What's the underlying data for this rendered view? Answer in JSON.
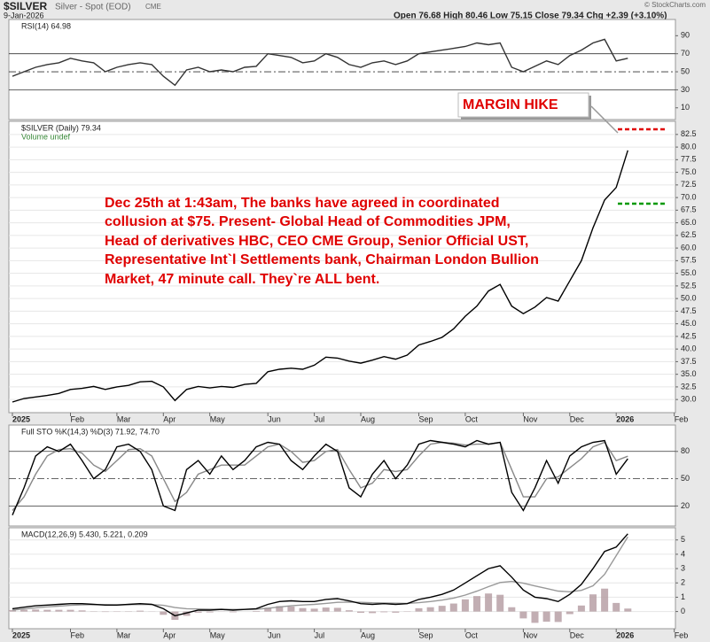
{
  "header": {
    "symbol": "$SILVER",
    "name": "Silver - Spot (EOD)",
    "exchange": "CME",
    "date": "9-Jan-2026",
    "quote": "Open 76.68 High 80.46 Low 75.15 Close 79.34 Chg +2.39 (+3.10%)",
    "credit": "© StockCharts.com"
  },
  "annotation": {
    "label": "MARGIN HIKE",
    "lines": [
      "Dec 25th at 1:43am, The banks have agreed in coordinated",
      "collusion at $75. Present- Global Head of Commodities JPM,",
      "Head of derivatives HBC, CEO CME Group, Senior Official UST,",
      "Representative Int`l Settlements bank, Chairman London Bullion",
      "Market, 47 minute call. They`re ALL bent."
    ]
  },
  "chart_data": [
    {
      "type": "line",
      "title": "RSI(14) 64.98",
      "ylim": [
        -3,
        108
      ],
      "yticks": [
        10,
        30,
        50,
        70,
        90
      ],
      "hlines": [
        {
          "value": 70,
          "style": "solid"
        },
        {
          "value": 50,
          "style": "dashed"
        },
        {
          "value": 30,
          "style": "solid"
        }
      ],
      "series": [
        {
          "color": "#333333",
          "values": [
            45,
            50,
            55,
            58,
            60,
            65,
            62,
            60,
            50,
            55,
            58,
            60,
            58,
            45,
            35,
            52,
            55,
            50,
            52,
            50,
            55,
            56,
            70,
            68,
            66,
            60,
            62,
            70,
            66,
            58,
            55,
            60,
            62,
            58,
            62,
            70,
            72,
            74,
            76,
            78,
            82,
            80,
            82,
            55,
            50,
            56,
            62,
            58,
            68,
            74,
            82,
            86,
            62,
            64.98
          ]
        }
      ]
    },
    {
      "type": "line",
      "title": "$SILVER (Daily) 79.34",
      "subtitle": "Volume undef",
      "ylim": [
        27.4,
        85.1
      ],
      "grid": true,
      "yticks": [
        {
          "value": 30,
          "label": "30.0"
        },
        32.5,
        {
          "value": 35,
          "label": "35.0"
        },
        37.5,
        {
          "value": 40,
          "label": "40.0"
        },
        42.5,
        {
          "value": 45,
          "label": "45.0"
        },
        47.5,
        {
          "value": 50,
          "label": "50.0"
        },
        52.5,
        {
          "value": 55,
          "label": "55.0"
        },
        57.5,
        {
          "value": 60,
          "label": "60.0"
        },
        62.5,
        {
          "value": 65,
          "label": "65.0"
        },
        67.5,
        {
          "value": 70,
          "label": "70.0"
        },
        72.5,
        {
          "value": 75,
          "label": "75.0"
        },
        77.5,
        {
          "value": 80,
          "label": "80.0"
        },
        82.5
      ],
      "categories": [
        "2025",
        null,
        null,
        null,
        null,
        "Feb",
        null,
        null,
        null,
        "Mar",
        null,
        null,
        null,
        "Apr",
        null,
        null,
        null,
        "May",
        null,
        null,
        null,
        null,
        "Jun",
        null,
        null,
        null,
        "Jul",
        null,
        null,
        null,
        "Aug",
        null,
        null,
        null,
        null,
        "Sep",
        null,
        null,
        null,
        "Oct",
        null,
        null,
        null,
        null,
        "Nov",
        null,
        null,
        null,
        "Dec",
        null,
        null,
        null,
        "2026",
        null,
        null,
        null,
        null,
        "Feb"
      ],
      "series": [
        {
          "color": "#000000",
          "values": [
            29.5,
            30.2,
            30.5,
            30.8,
            31.2,
            32,
            32.2,
            32.6,
            32,
            32.5,
            32.8,
            33.5,
            33.6,
            32.5,
            29.8,
            32,
            32.6,
            32.3,
            32.6,
            32.4,
            33,
            33.2,
            35.5,
            36,
            36.2,
            36,
            36.8,
            38.4,
            38.2,
            37.6,
            37.2,
            37.8,
            38.5,
            38,
            38.8,
            40.8,
            41.5,
            42.3,
            44,
            46.5,
            48.5,
            51.5,
            52.8,
            48.5,
            47,
            48.3,
            50.2,
            49.5,
            53.5,
            57.5,
            64,
            69.5,
            72,
            79.34,
            null,
            null,
            null,
            null
          ]
        }
      ]
    },
    {
      "type": "line",
      "title": "Full STO %K(14,3) %D(3) 71.92, 74.70",
      "ylim": [
        -2,
        109
      ],
      "yticks": [
        20,
        50,
        80
      ],
      "hlines": [
        {
          "value": 80,
          "style": "solid"
        },
        {
          "value": 50,
          "style": "dashed"
        },
        {
          "value": 20,
          "style": "solid"
        }
      ],
      "series": [
        {
          "color": "#888888",
          "values": [
            15,
            30,
            55,
            75,
            82,
            83,
            78,
            65,
            58,
            70,
            82,
            83,
            75,
            50,
            25,
            35,
            55,
            60,
            65,
            65,
            65,
            75,
            85,
            88,
            80,
            68,
            70,
            80,
            82,
            60,
            40,
            45,
            60,
            58,
            60,
            75,
            88,
            90,
            89,
            87,
            88,
            88,
            90,
            60,
            30,
            30,
            50,
            52,
            62,
            72,
            85,
            90,
            70,
            74.7
          ]
        },
        {
          "color": "#000000",
          "values": [
            10,
            40,
            75,
            85,
            80,
            88,
            70,
            50,
            60,
            85,
            88,
            80,
            60,
            20,
            15,
            60,
            70,
            55,
            75,
            60,
            70,
            85,
            90,
            88,
            70,
            60,
            75,
            88,
            80,
            40,
            30,
            55,
            70,
            50,
            65,
            88,
            92,
            90,
            88,
            85,
            92,
            88,
            90,
            35,
            15,
            40,
            70,
            45,
            75,
            85,
            90,
            92,
            55,
            71.92
          ]
        }
      ]
    },
    {
      "type": "line",
      "title": "MACD(12,26,9) 5.430, 5.221, 0.209",
      "ylim": [
        -1.2,
        5.85
      ],
      "yticks": [
        0,
        1,
        2,
        3,
        4,
        5
      ],
      "grid": true,
      "categories": [
        "2025",
        null,
        null,
        null,
        null,
        "Feb",
        null,
        null,
        null,
        "Mar",
        null,
        null,
        null,
        "Apr",
        null,
        null,
        null,
        "May",
        null,
        null,
        null,
        null,
        "Jun",
        null,
        null,
        null,
        "Jul",
        null,
        null,
        null,
        "Aug",
        null,
        null,
        null,
        null,
        "Sep",
        null,
        null,
        null,
        "Oct",
        null,
        null,
        null,
        null,
        "Nov",
        null,
        null,
        null,
        "Dec",
        null,
        null,
        null,
        "2026",
        null,
        null,
        null,
        null,
        "Feb"
      ],
      "series": [
        {
          "color": "#b39aa0",
          "mark": "bar",
          "values": [
            0.1,
            0.12,
            0.14,
            0.12,
            0.12,
            0.12,
            0.08,
            0.02,
            -0.03,
            -0.02,
            0.02,
            0.06,
            0.01,
            -0.23,
            -0.58,
            -0.3,
            -0.08,
            -0.06,
            -0.01,
            -0.05,
            0,
            0.04,
            0.27,
            0.38,
            0.35,
            0.24,
            0.2,
            0.28,
            0.26,
            0.09,
            -0.09,
            -0.11,
            -0.05,
            -0.08,
            -0.02,
            0.23,
            0.3,
            0.4,
            0.56,
            0.85,
            1.08,
            1.26,
            1.17,
            0.3,
            -0.48,
            -0.79,
            -0.71,
            -0.73,
            -0.18,
            0.42,
            1.2,
            1.6,
            0.6,
            0.209,
            null,
            null,
            null,
            null
          ]
        },
        {
          "color": "#999999",
          "values": [
            0.1,
            0.18,
            0.26,
            0.33,
            0.38,
            0.43,
            0.47,
            0.48,
            0.48,
            0.47,
            0.48,
            0.49,
            0.49,
            0.43,
            0.28,
            0.2,
            0.18,
            0.16,
            0.16,
            0.15,
            0.15,
            0.16,
            0.23,
            0.32,
            0.4,
            0.46,
            0.5,
            0.57,
            0.64,
            0.66,
            0.64,
            0.61,
            0.6,
            0.58,
            0.57,
            0.62,
            0.7,
            0.8,
            0.94,
            1.15,
            1.42,
            1.74,
            2.03,
            2.1,
            1.98,
            1.79,
            1.61,
            1.43,
            1.38,
            1.48,
            1.8,
            2.6,
            3.9,
            5.221,
            null,
            null,
            null,
            null
          ]
        },
        {
          "color": "#000000",
          "values": [
            0.2,
            0.3,
            0.4,
            0.45,
            0.5,
            0.55,
            0.55,
            0.5,
            0.45,
            0.45,
            0.5,
            0.55,
            0.5,
            0.2,
            -0.3,
            -0.1,
            0.1,
            0.1,
            0.15,
            0.1,
            0.15,
            0.2,
            0.5,
            0.7,
            0.75,
            0.7,
            0.7,
            0.85,
            0.9,
            0.75,
            0.55,
            0.5,
            0.55,
            0.5,
            0.55,
            0.85,
            1.0,
            1.2,
            1.5,
            2.0,
            2.5,
            3.0,
            3.2,
            2.4,
            1.5,
            1.0,
            0.9,
            0.7,
            1.2,
            1.9,
            3.0,
            4.2,
            4.5,
            5.43,
            null,
            null,
            null,
            null
          ]
        }
      ]
    }
  ]
}
